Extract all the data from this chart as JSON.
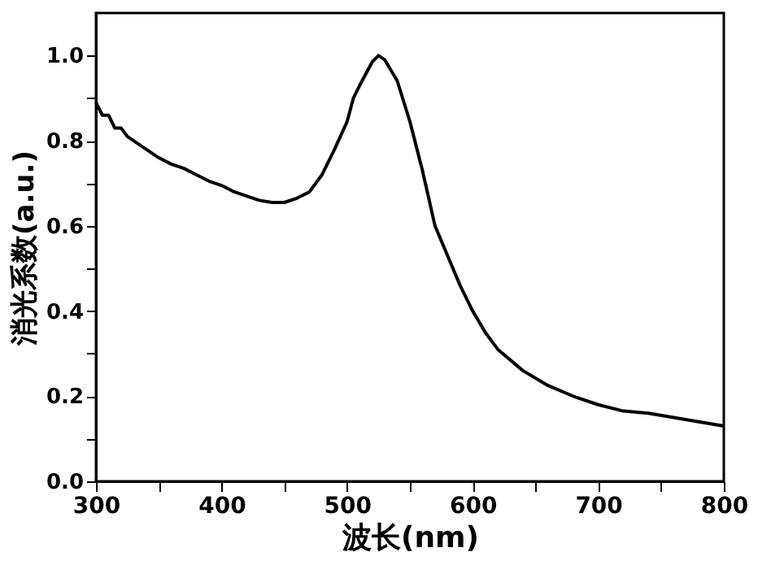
{
  "chart_data": {
    "type": "line",
    "xlabel": "波长(nm)",
    "ylabel": "消光系数(a.u.)",
    "x": [
      300,
      305,
      310,
      315,
      320,
      325,
      330,
      335,
      340,
      350,
      360,
      370,
      380,
      390,
      400,
      410,
      420,
      430,
      440,
      450,
      460,
      470,
      480,
      490,
      500,
      505,
      510,
      520,
      525,
      530,
      540,
      550,
      560,
      570,
      580,
      590,
      600,
      610,
      620,
      640,
      660,
      680,
      700,
      720,
      740,
      760,
      780,
      800
    ],
    "series": [
      {
        "color": "#000000",
        "values": [
          0.89,
          0.86,
          0.86,
          0.83,
          0.83,
          0.81,
          0.8,
          0.79,
          0.78,
          0.76,
          0.745,
          0.735,
          0.72,
          0.705,
          0.695,
          0.68,
          0.67,
          0.66,
          0.655,
          0.655,
          0.665,
          0.68,
          0.72,
          0.78,
          0.845,
          0.9,
          0.93,
          0.985,
          1.0,
          0.99,
          0.94,
          0.845,
          0.73,
          0.6,
          0.53,
          0.46,
          0.4,
          0.35,
          0.31,
          0.26,
          0.225,
          0.2,
          0.18,
          0.165,
          0.16,
          0.15,
          0.14,
          0.13
        ]
      }
    ],
    "xlim": [
      300,
      800
    ],
    "ylim": [
      0,
      1.1
    ],
    "xticks": [
      300,
      {
        "value": 350,
        "label": null
      },
      400,
      {
        "value": 450,
        "label": null
      },
      500,
      {
        "value": 550,
        "label": null
      },
      600,
      {
        "value": 650,
        "label": null
      },
      700,
      {
        "value": 750,
        "label": null
      },
      800
    ],
    "yticks": [
      {
        "value": 0,
        "label": "0.0"
      },
      {
        "value": 0.1,
        "label": null
      },
      0.2,
      {
        "value": 0.3,
        "label": null
      },
      0.4,
      {
        "value": 0.5,
        "label": null
      },
      0.6,
      {
        "value": 0.7,
        "label": null
      },
      0.8,
      {
        "value": 0.9,
        "label": null
      },
      {
        "value": 1.0,
        "label": "1.0"
      }
    ],
    "grid": false,
    "marker": "none",
    "line_style": "solid"
  }
}
